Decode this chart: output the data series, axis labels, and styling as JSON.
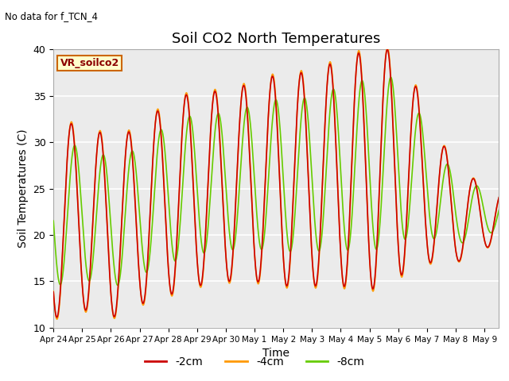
{
  "title": "Soil CO2 North Temperatures",
  "no_data_text": "No data for f_TCN_4",
  "xlabel": "Time",
  "ylabel": "Soil Temperatures (C)",
  "ylim": [
    10,
    40
  ],
  "xlim_start": 0,
  "xlim_end": 15.5,
  "background_color": "#ebebeb",
  "legend_label": "VR_soilco2",
  "legend_box_facecolor": "#ffffcc",
  "legend_box_edgecolor": "#cc6600",
  "color_2cm": "#cc0000",
  "color_4cm": "#ff9900",
  "color_8cm": "#66cc00",
  "xtick_labels": [
    "Apr 24",
    "Apr 25",
    "Apr 26",
    "Apr 27",
    "Apr 28",
    "Apr 29",
    "Apr 30",
    "May 1",
    "May 2",
    "May 3",
    "May 4",
    "May 5",
    "May 6",
    "May 7",
    "May 8",
    "May 9"
  ],
  "xtick_positions": [
    0,
    1,
    2,
    3,
    4,
    5,
    6,
    7,
    8,
    9,
    10,
    11,
    12,
    13,
    14,
    15
  ],
  "ytick_positions": [
    10,
    15,
    20,
    25,
    30,
    35,
    40
  ],
  "grid_color": "#ffffff",
  "line_width": 1.2,
  "pts_per_day": 200
}
